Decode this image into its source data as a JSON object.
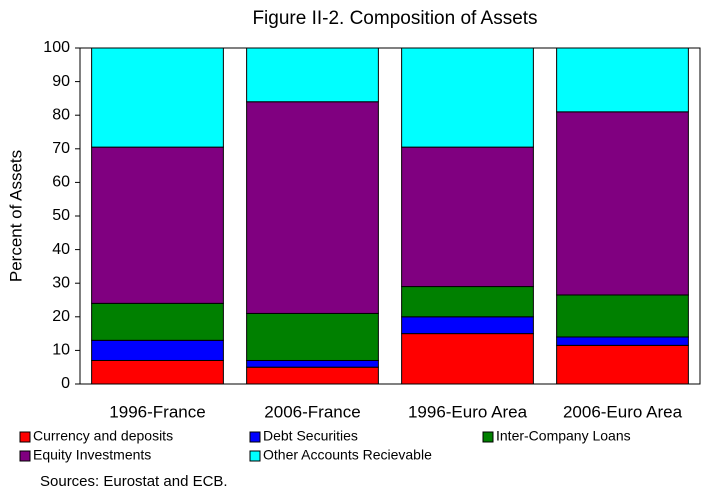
{
  "chart_data": {
    "type": "stacked_bar",
    "title": "Figure II-2. Composition of Assets",
    "y_label": "Percent of Assets",
    "categories": [
      "1996-France",
      "2006-France",
      "1996-Euro Area",
      "2006-Euro Area"
    ],
    "series": [
      {
        "name": "Currency and deposits",
        "color": "#ff0000",
        "values": [
          7,
          5,
          15,
          11.5
        ]
      },
      {
        "name": "Debt Securities",
        "color": "#0000ff",
        "values": [
          6,
          2,
          5,
          2.5
        ]
      },
      {
        "name": "Inter-Company Loans",
        "color": "#008000",
        "values": [
          11,
          14,
          9,
          12.5
        ]
      },
      {
        "name": "Equity Investments",
        "color": "#800080",
        "values": [
          46.5,
          63,
          41.5,
          54.5
        ]
      },
      {
        "name": "Other Accounts Recievable",
        "color": "#00ffff",
        "values": [
          29.5,
          16,
          29.5,
          19
        ]
      }
    ],
    "ylim": [
      0,
      100
    ],
    "yticks": [
      0,
      10,
      20,
      30,
      40,
      50,
      60,
      70,
      80,
      90,
      100
    ],
    "source": "Sources: Eurostat and ECB."
  }
}
